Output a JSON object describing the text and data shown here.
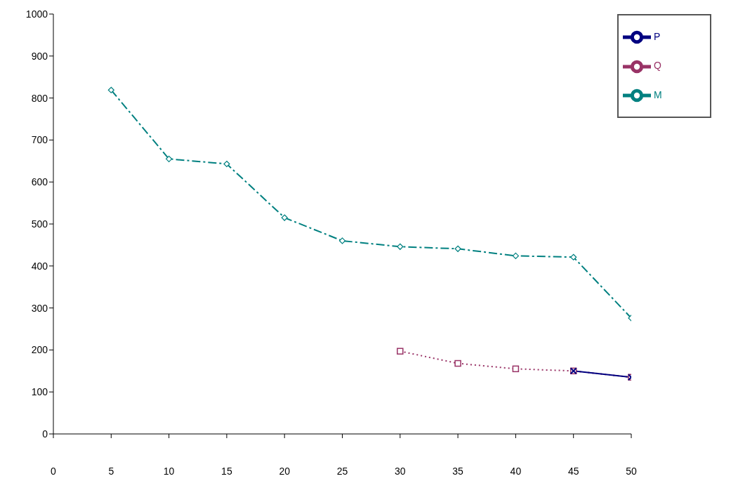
{
  "chart_data": {
    "type": "line",
    "x": [
      5,
      10,
      15,
      20,
      25,
      30,
      35,
      40,
      45,
      50
    ],
    "series": [
      {
        "name": "P",
        "color": "#000080",
        "marker": "cross",
        "line_style": "solid",
        "values": [
          null,
          null,
          null,
          null,
          null,
          null,
          null,
          null,
          150,
          135
        ]
      },
      {
        "name": "Q",
        "color": "#993366",
        "marker": "square",
        "line_style": "dotted",
        "values": [
          null,
          null,
          null,
          null,
          null,
          197,
          168,
          155,
          150,
          135
        ]
      },
      {
        "name": "M",
        "color": "#008080",
        "marker": "diamond",
        "line_style": "dashed",
        "values": [
          819,
          655,
          643,
          515,
          460,
          446,
          441,
          424,
          421,
          276
        ]
      }
    ],
    "xlim": [
      0,
      50
    ],
    "xticks": [
      0,
      5,
      10,
      15,
      20,
      25,
      30,
      35,
      40,
      45,
      50
    ],
    "ylim": [
      0,
      1000
    ],
    "yticks": [
      0,
      100,
      200,
      300,
      400,
      500,
      600,
      700,
      800,
      900,
      1000
    ],
    "grid": false,
    "legend": "top right"
  }
}
